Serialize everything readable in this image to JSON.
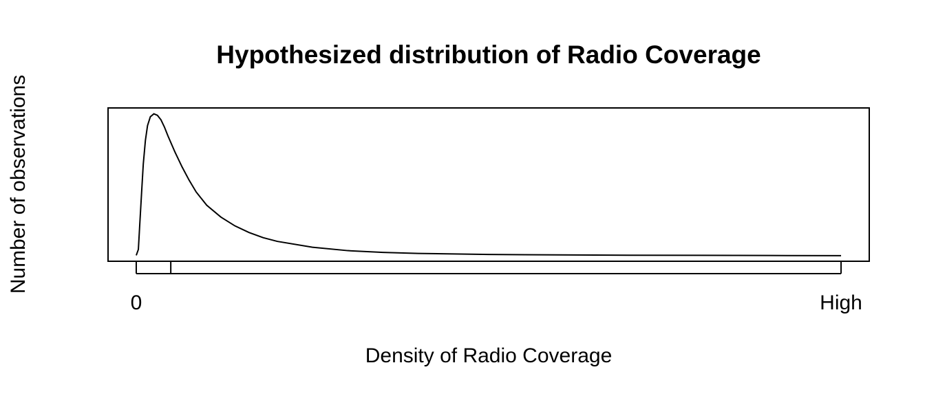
{
  "chart_data": {
    "type": "line",
    "title": "Hypothesized distribution of Radio Coverage",
    "xlabel": "Density of Radio Coverage",
    "ylabel": "Number of observations",
    "x_ticks": [
      {
        "value": 0,
        "label": "0"
      },
      {
        "value": 0.049,
        "label": ""
      },
      {
        "value": 1,
        "label": "High"
      }
    ],
    "xlim": [
      -0.04,
      1.04
    ],
    "ylim": [
      0,
      1.04
    ],
    "series": [
      {
        "values_x": [
          0,
          0.003,
          0.005,
          0.008,
          0.01,
          0.013,
          0.016,
          0.02,
          0.025,
          0.03,
          0.035,
          0.04,
          0.045,
          0.055,
          0.065,
          0.075,
          0.085,
          0.1,
          0.12,
          0.14,
          0.16,
          0.18,
          0.2,
          0.25,
          0.3,
          0.35,
          0.4,
          0.5,
          0.6,
          0.7,
          0.8,
          0.9,
          1.0
        ],
        "values_y": [
          0.04,
          0.08,
          0.25,
          0.5,
          0.66,
          0.82,
          0.92,
          0.98,
          1.0,
          0.99,
          0.96,
          0.91,
          0.85,
          0.74,
          0.64,
          0.55,
          0.47,
          0.38,
          0.3,
          0.24,
          0.195,
          0.16,
          0.135,
          0.095,
          0.072,
          0.06,
          0.053,
          0.046,
          0.043,
          0.041,
          0.04,
          0.039,
          0.038
        ]
      }
    ],
    "grid": false,
    "legend": "none"
  }
}
